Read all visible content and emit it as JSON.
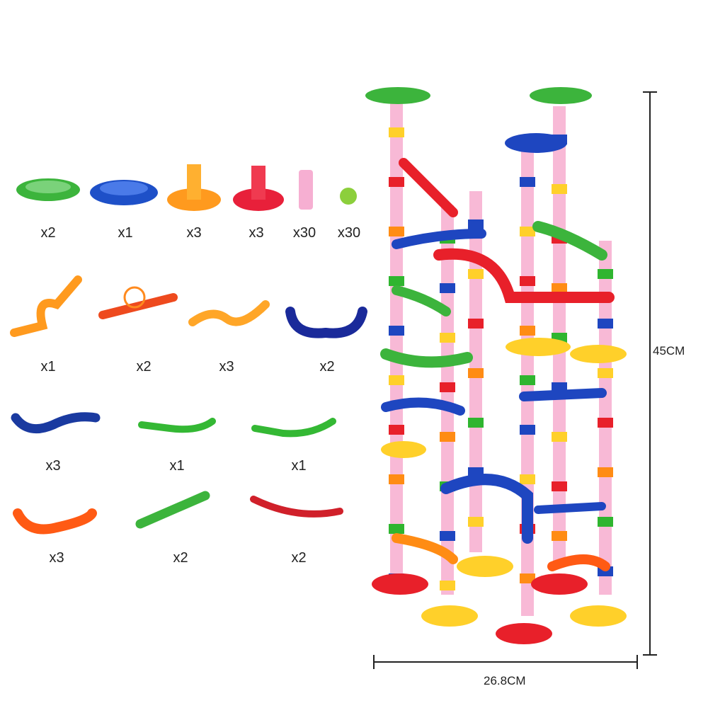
{
  "parts": {
    "row1": [
      {
        "name": "green-funnel-with-windmill",
        "count": "x2",
        "color": "#3cb43c"
      },
      {
        "name": "blue-funnel-with-windmill",
        "count": "x1",
        "color": "#1e50c8"
      },
      {
        "name": "orange-base",
        "count": "x3",
        "color": "#ff9a1e"
      },
      {
        "name": "red-base",
        "count": "x3",
        "color": "#e8203a"
      },
      {
        "name": "clear-tube",
        "count": "x30",
        "color": "#f07ab4"
      },
      {
        "name": "marble",
        "count": "x30",
        "color": "#8ccf3c"
      }
    ],
    "row2": [
      {
        "name": "orange-loop-track",
        "count": "x1",
        "color": "#ff9a1e"
      },
      {
        "name": "red-wheel-track",
        "count": "x2",
        "color": "#ee4a1e"
      },
      {
        "name": "orange-wave-track",
        "count": "x3",
        "color": "#ffa628"
      },
      {
        "name": "blue-curve-track",
        "count": "x2",
        "color": "#1a2a9a"
      }
    ],
    "row3": [
      {
        "name": "blue-wave-track",
        "count": "x3",
        "color": "#1a3aa0"
      },
      {
        "name": "green-spiral-track-left",
        "count": "x1",
        "color": "#34b834"
      },
      {
        "name": "green-spiral-track-right",
        "count": "x1",
        "color": "#34b834"
      }
    ],
    "row4": [
      {
        "name": "orange-u-track",
        "count": "x3",
        "color": "#ff5a14"
      },
      {
        "name": "green-bumpy-track",
        "count": "x2",
        "color": "#3cb43c"
      },
      {
        "name": "red-slide-track",
        "count": "x2",
        "color": "#d0202a"
      }
    ]
  },
  "dimensions": {
    "height": "45CM",
    "width": "26.8CM"
  }
}
